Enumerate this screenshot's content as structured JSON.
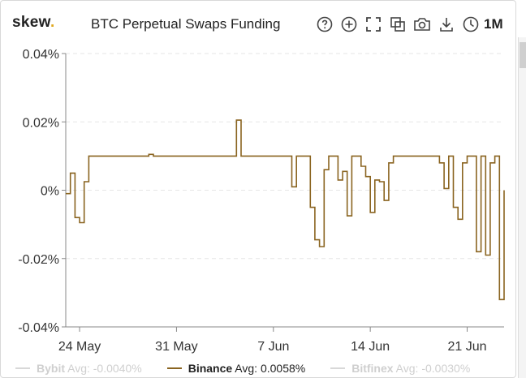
{
  "header": {
    "logo_text": "skew",
    "logo_dot": ".",
    "title": "BTC Perpetual Swaps Funding",
    "range_label": "1M"
  },
  "toolbar": [
    {
      "name": "help-icon"
    },
    {
      "name": "zoom-in-icon"
    },
    {
      "name": "fullscreen-icon"
    },
    {
      "name": "copy-icon"
    },
    {
      "name": "camera-icon"
    },
    {
      "name": "download-icon"
    },
    {
      "name": "clock-icon"
    }
  ],
  "colors": {
    "binance": "#8a6420",
    "grid": "#e6e6e6",
    "axis": "#888888",
    "logo_dot": "#e0a81e"
  },
  "legend": [
    {
      "name": "Bybit",
      "value_text": " Avg: -0.0040%",
      "enabled": false
    },
    {
      "name": "Binance",
      "value_text": " Avg: 0.0058%",
      "enabled": true
    },
    {
      "name": "Bitfinex",
      "value_text": " Avg: -0.0030%",
      "enabled": false
    }
  ],
  "chart_data": {
    "type": "line",
    "step": true,
    "title": "BTC Perpetual Swaps Funding",
    "xlabel": "",
    "ylabel": "",
    "grid": true,
    "legend_position": "bottom",
    "y_unit": "%",
    "ylim": [
      -0.04,
      0.04
    ],
    "yticks": [
      -0.04,
      -0.02,
      0,
      0.02,
      0.04
    ],
    "ytick_labels": [
      "-0.04%",
      "-0.02%",
      "0%",
      "0.02%",
      "0.04%"
    ],
    "xlim": [
      "2020-05-23",
      "2020-06-23"
    ],
    "xticks": [
      "2020-05-24",
      "2020-05-31",
      "2020-06-07",
      "2020-06-14",
      "2020-06-21"
    ],
    "xtick_labels": [
      "24 May",
      "31 May",
      "7 Jun",
      "14 Jun",
      "21 Jun"
    ],
    "series": [
      {
        "name": "Binance",
        "color": "#8a6420",
        "visible": true,
        "points": [
          [
            "2020-05-23 00:00",
            -0.001
          ],
          [
            "2020-05-23 08:00",
            0.005
          ],
          [
            "2020-05-23 16:00",
            -0.008
          ],
          [
            "2020-05-24 00:00",
            -0.0095
          ],
          [
            "2020-05-24 08:00",
            0.0025
          ],
          [
            "2020-05-24 16:00",
            0.01
          ],
          [
            "2020-05-29 00:00",
            0.0105
          ],
          [
            "2020-05-29 08:00",
            0.01
          ],
          [
            "2020-06-04 08:00",
            0.0205
          ],
          [
            "2020-06-04 16:00",
            0.01
          ],
          [
            "2020-06-08 08:00",
            0.001
          ],
          [
            "2020-06-08 16:00",
            0.01
          ],
          [
            "2020-06-09 16:00",
            -0.005
          ],
          [
            "2020-06-10 00:00",
            -0.0145
          ],
          [
            "2020-06-10 08:00",
            -0.0165
          ],
          [
            "2020-06-10 16:00",
            0.006
          ],
          [
            "2020-06-11 00:00",
            0.01
          ],
          [
            "2020-06-11 16:00",
            0.003
          ],
          [
            "2020-06-12 00:00",
            0.0055
          ],
          [
            "2020-06-12 08:00",
            -0.0075
          ],
          [
            "2020-06-12 16:00",
            0.01
          ],
          [
            "2020-06-13 08:00",
            0.007
          ],
          [
            "2020-06-13 16:00",
            0.004
          ],
          [
            "2020-06-14 00:00",
            -0.0065
          ],
          [
            "2020-06-14 08:00",
            0.003
          ],
          [
            "2020-06-14 16:00",
            0.0025
          ],
          [
            "2020-06-15 00:00",
            -0.003
          ],
          [
            "2020-06-15 08:00",
            0.008
          ],
          [
            "2020-06-15 16:00",
            0.01
          ],
          [
            "2020-06-19 00:00",
            0.008
          ],
          [
            "2020-06-19 08:00",
            0.0005
          ],
          [
            "2020-06-19 16:00",
            0.01
          ],
          [
            "2020-06-20 00:00",
            -0.005
          ],
          [
            "2020-06-20 08:00",
            -0.0085
          ],
          [
            "2020-06-20 16:00",
            0.008
          ],
          [
            "2020-06-21 00:00",
            0.01
          ],
          [
            "2020-06-21 16:00",
            -0.018
          ],
          [
            "2020-06-22 00:00",
            0.01
          ],
          [
            "2020-06-22 08:00",
            -0.019
          ],
          [
            "2020-06-22 16:00",
            0.008
          ],
          [
            "2020-06-23 00:00",
            0.01
          ],
          [
            "2020-06-23 08:00",
            -0.032
          ],
          [
            "2020-06-23 16:00",
            0.0
          ]
        ]
      }
    ]
  }
}
